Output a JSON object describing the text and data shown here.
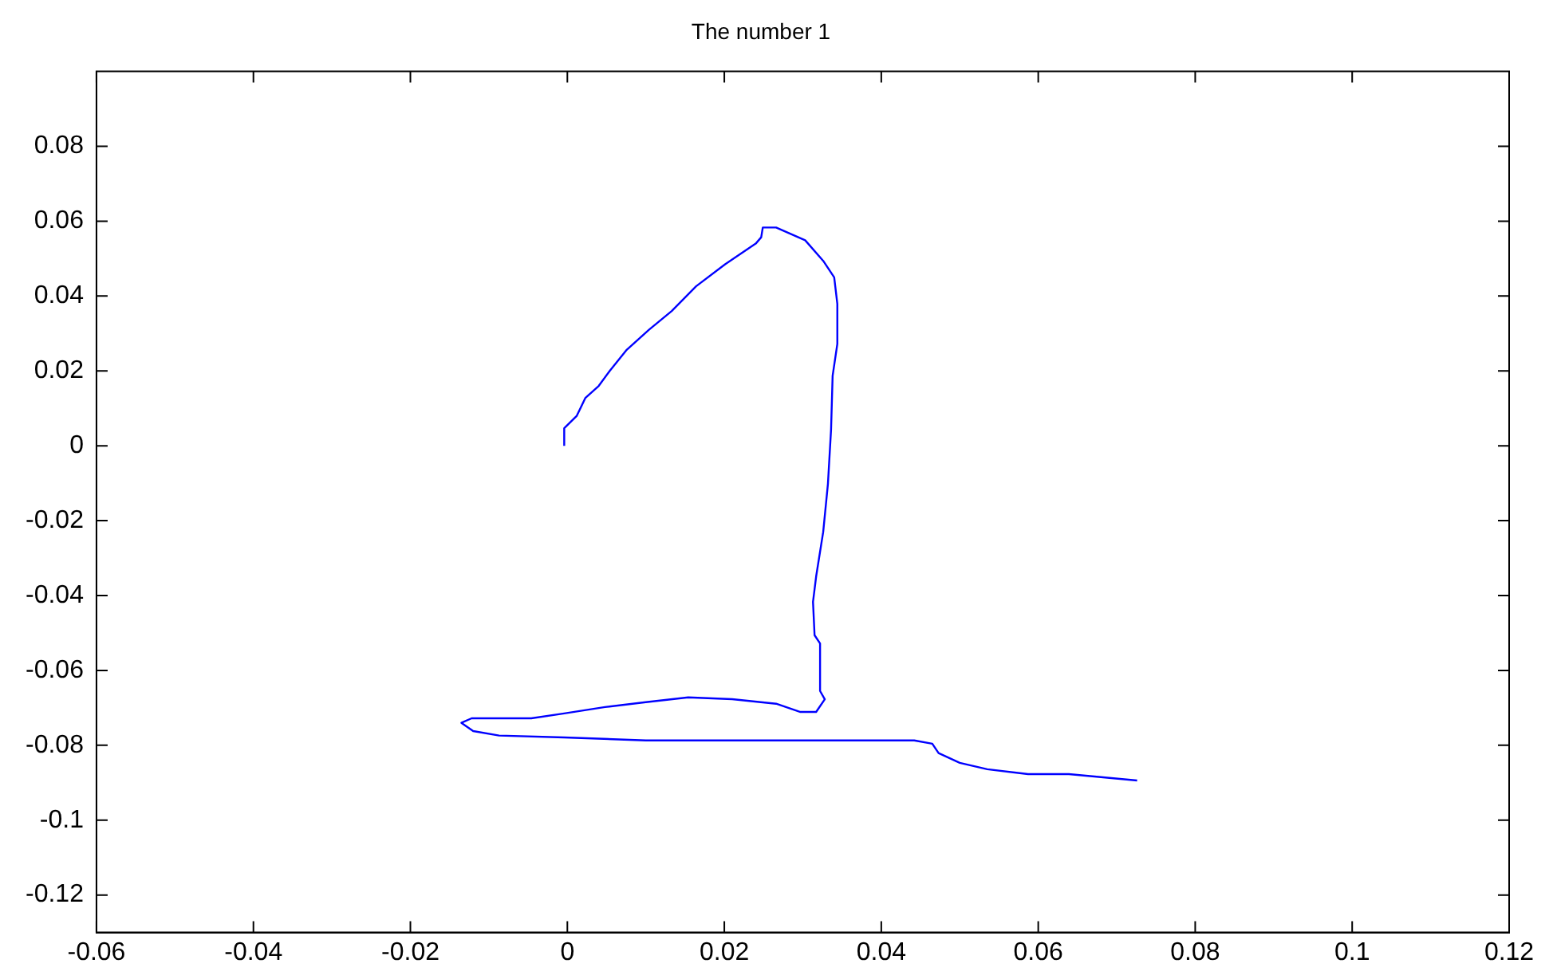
{
  "chart_data": {
    "type": "line",
    "title": "The number 1",
    "x": [
      -0.0004,
      -0.0004,
      0.0012,
      0.0023,
      0.004,
      0.0054,
      0.0075,
      0.0104,
      0.0133,
      0.0164,
      0.0201,
      0.024,
      0.0247,
      0.0249,
      0.0266,
      0.0303,
      0.0326,
      0.034,
      0.0344,
      0.0344,
      0.0338,
      0.0336,
      0.0332,
      0.0326,
      0.0317,
      0.0313,
      0.0315,
      0.0322,
      0.0322,
      0.0328,
      0.0317,
      0.0297,
      0.0266,
      0.021,
      0.0154,
      0.01,
      0.0048,
      -0.0004,
      -0.0046,
      -0.0122,
      -0.0135,
      -0.012,
      -0.0087,
      -0.0004,
      0.01,
      0.0286,
      0.0442,
      0.0465,
      0.0473,
      0.05,
      0.0535,
      0.0587,
      0.0639,
      0.0726
    ],
    "series": [
      {
        "color": "#0000ff",
        "values": [
          0,
          0.0047,
          0.008,
          0.0128,
          0.016,
          0.02,
          0.0255,
          0.031,
          0.036,
          0.0426,
          0.0485,
          0.054,
          0.0557,
          0.0583,
          0.0583,
          0.0549,
          0.0494,
          0.045,
          0.0379,
          0.0272,
          0.0187,
          0.0043,
          -0.0102,
          -0.023,
          -0.0349,
          -0.0417,
          -0.0506,
          -0.0528,
          -0.0655,
          -0.0677,
          -0.0711,
          -0.0711,
          -0.0689,
          -0.0677,
          -0.0672,
          -0.0685,
          -0.0698,
          -0.0715,
          -0.0728,
          -0.0728,
          -0.074,
          -0.0762,
          -0.0774,
          -0.0779,
          -0.0787,
          -0.0787,
          -0.0787,
          -0.0796,
          -0.0821,
          -0.0847,
          -0.0864,
          -0.0877,
          -0.0877,
          -0.0894
        ]
      }
    ],
    "xlim": [
      -0.06,
      0.12
    ],
    "xticks": [
      -0.06,
      -0.04,
      -0.02,
      0,
      0.02,
      0.04,
      0.06,
      0.08,
      0.1,
      0.12
    ],
    "ylim": [
      -0.13,
      0.1
    ],
    "yticks": [
      -0.12,
      -0.1,
      -0.08,
      -0.06,
      -0.04,
      -0.02,
      0,
      0.02,
      0.04,
      0.06,
      0.08
    ],
    "grid": false,
    "legend": false,
    "marker": "none",
    "line_style": "solid"
  }
}
